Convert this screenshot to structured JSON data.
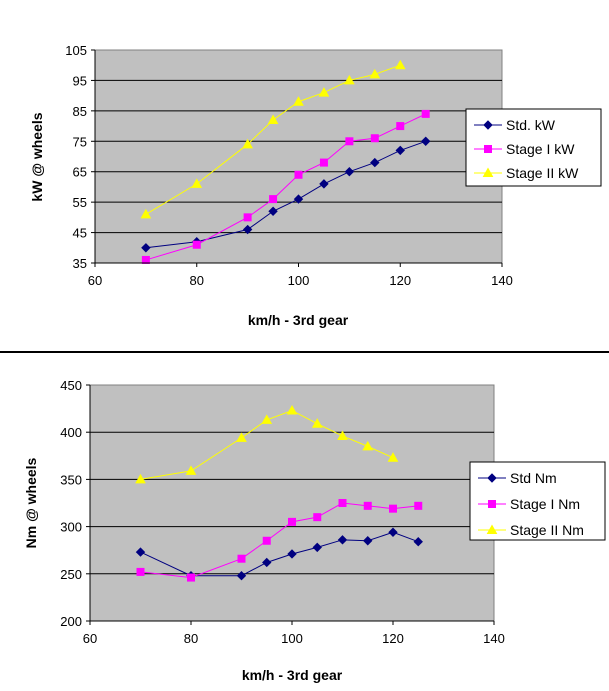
{
  "colors": {
    "plot_bg": "#c0c0c0",
    "grid": "#000000",
    "std": "#000080",
    "stage1": "#ff00ff",
    "stage2": "#ffff00"
  },
  "chart_data": [
    {
      "type": "line",
      "xlabel": "km/h - 3rd gear",
      "ylabel": "kW @ wheels",
      "xlim": [
        60,
        140
      ],
      "ylim": [
        35,
        105
      ],
      "xticks": [
        60,
        80,
        100,
        120,
        140
      ],
      "yticks": [
        35,
        45,
        55,
        65,
        75,
        85,
        95,
        105
      ],
      "grid": "horizontal",
      "legend": "right",
      "series": [
        {
          "name": "Std. kW",
          "marker": "diamond",
          "color": "#000080",
          "x": [
            70,
            80,
            90,
            95,
            100,
            105,
            110,
            115,
            120,
            125
          ],
          "y": [
            40,
            42,
            46,
            52,
            56,
            61,
            65,
            68,
            72,
            75
          ]
        },
        {
          "name": "Stage I kW",
          "marker": "square",
          "color": "#ff00ff",
          "x": [
            70,
            80,
            90,
            95,
            100,
            105,
            110,
            115,
            120,
            125
          ],
          "y": [
            36,
            41,
            50,
            56,
            64,
            68,
            75,
            76,
            80,
            84
          ]
        },
        {
          "name": "Stage II kW",
          "marker": "triangle",
          "color": "#ffff00",
          "x": [
            70,
            80,
            90,
            95,
            100,
            105,
            110,
            115,
            120
          ],
          "y": [
            51,
            61,
            74,
            82,
            88,
            91,
            95,
            97,
            100
          ]
        }
      ]
    },
    {
      "type": "line",
      "xlabel": "km/h - 3rd gear",
      "ylabel": "Nm @ wheels",
      "xlim": [
        60,
        140
      ],
      "ylim": [
        200,
        450
      ],
      "xticks": [
        60,
        80,
        100,
        120,
        140
      ],
      "yticks": [
        200,
        250,
        300,
        350,
        400,
        450
      ],
      "grid": "horizontal",
      "legend": "right",
      "series": [
        {
          "name": "Std Nm",
          "marker": "diamond",
          "color": "#000080",
          "x": [
            70,
            80,
            90,
            95,
            100,
            105,
            110,
            115,
            120,
            125
          ],
          "y": [
            273,
            248,
            248,
            262,
            271,
            278,
            286,
            285,
            294,
            284
          ]
        },
        {
          "name": "Stage I Nm",
          "marker": "square",
          "color": "#ff00ff",
          "x": [
            70,
            80,
            90,
            95,
            100,
            105,
            110,
            115,
            120,
            125
          ],
          "y": [
            252,
            246,
            266,
            285,
            305,
            310,
            325,
            322,
            319,
            322
          ]
        },
        {
          "name": "Stage II Nm",
          "marker": "triangle",
          "color": "#ffff00",
          "x": [
            70,
            80,
            90,
            95,
            100,
            105,
            110,
            115,
            120
          ],
          "y": [
            350,
            359,
            394,
            413,
            423,
            409,
            396,
            385,
            373
          ]
        }
      ]
    }
  ]
}
